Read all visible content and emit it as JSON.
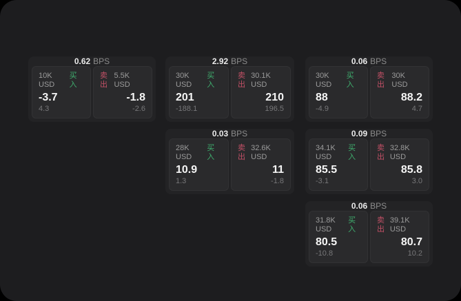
{
  "labels": {
    "bps_unit": "BPS",
    "buy": "买入",
    "sell": "卖出"
  },
  "colors": {
    "buy": "#3fae6e",
    "sell": "#c25066",
    "surface": "#1d1d1f",
    "card": "#232325",
    "panel": "#2a2a2c"
  },
  "cards": [
    {
      "bps": "0.62",
      "col": 1,
      "row": 1,
      "buy": {
        "amount": "10K USD",
        "price": "-3.7",
        "delta": "4.3"
      },
      "sell": {
        "amount": "5.5K USD",
        "price": "-1.8",
        "delta": "-2.6"
      }
    },
    {
      "bps": "2.92",
      "col": 2,
      "row": 1,
      "buy": {
        "amount": "30K USD",
        "price": "201",
        "delta": "-188.1"
      },
      "sell": {
        "amount": "30.1K USD",
        "price": "210",
        "delta": "196.5"
      }
    },
    {
      "bps": "0.06",
      "col": 3,
      "row": 1,
      "buy": {
        "amount": "30K USD",
        "price": "88",
        "delta": "-4.9"
      },
      "sell": {
        "amount": "30K USD",
        "price": "88.2",
        "delta": "4.7"
      }
    },
    {
      "bps": "0.03",
      "col": 2,
      "row": 2,
      "buy": {
        "amount": "28K USD",
        "price": "10.9",
        "delta": "1.3"
      },
      "sell": {
        "amount": "32.6K USD",
        "price": "11",
        "delta": "-1.8"
      }
    },
    {
      "bps": "0.09",
      "col": 3,
      "row": 2,
      "buy": {
        "amount": "34.1K USD",
        "price": "85.5",
        "delta": "-3.1"
      },
      "sell": {
        "amount": "32.8K USD",
        "price": "85.8",
        "delta": "3.0"
      }
    },
    {
      "bps": "0.06",
      "col": 3,
      "row": 3,
      "buy": {
        "amount": "31.8K USD",
        "price": "80.5",
        "delta": "-10.8"
      },
      "sell": {
        "amount": "39.1K USD",
        "price": "80.7",
        "delta": "10.2"
      }
    }
  ]
}
